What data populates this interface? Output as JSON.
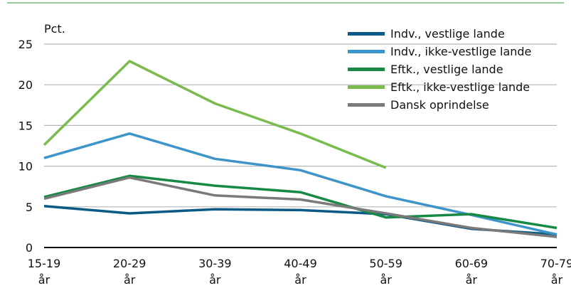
{
  "chart_data": {
    "type": "line",
    "unit_label": "Pct.",
    "categories": [
      [
        "15-19",
        "år"
      ],
      [
        "20-29",
        "år"
      ],
      [
        "30-39",
        "år"
      ],
      [
        "40-49",
        "år"
      ],
      [
        "50-59",
        "år"
      ],
      [
        "60-69",
        "år"
      ],
      [
        "70-79",
        "år"
      ]
    ],
    "ylim": [
      0,
      25
    ],
    "yticks": [
      0,
      5,
      10,
      15,
      20,
      25
    ],
    "grid": true,
    "legend_position": "top-right",
    "series": [
      {
        "name": "Indv., vestlige lande",
        "color": "#0b5a86",
        "values": [
          5.1,
          4.2,
          4.7,
          4.6,
          4.1,
          2.3,
          1.6
        ]
      },
      {
        "name": "Indv., ikke-vestlige lande",
        "color": "#3d94c8",
        "values": [
          11.0,
          14.0,
          10.9,
          9.5,
          6.3,
          4.0,
          1.6
        ]
      },
      {
        "name": "Eftk., vestlige lande",
        "color": "#168a45",
        "values": [
          6.2,
          8.8,
          7.6,
          6.8,
          3.7,
          4.1,
          2.4
        ]
      },
      {
        "name": "Eftk., ikke-vestlige lande",
        "color": "#79bc4d",
        "values": [
          12.6,
          22.9,
          17.7,
          14.0,
          9.8,
          null,
          null
        ]
      },
      {
        "name": "Dansk oprindelse",
        "color": "#7a7a7a",
        "values": [
          6.0,
          8.6,
          6.4,
          5.9,
          4.2,
          2.4,
          1.3
        ]
      }
    ]
  }
}
